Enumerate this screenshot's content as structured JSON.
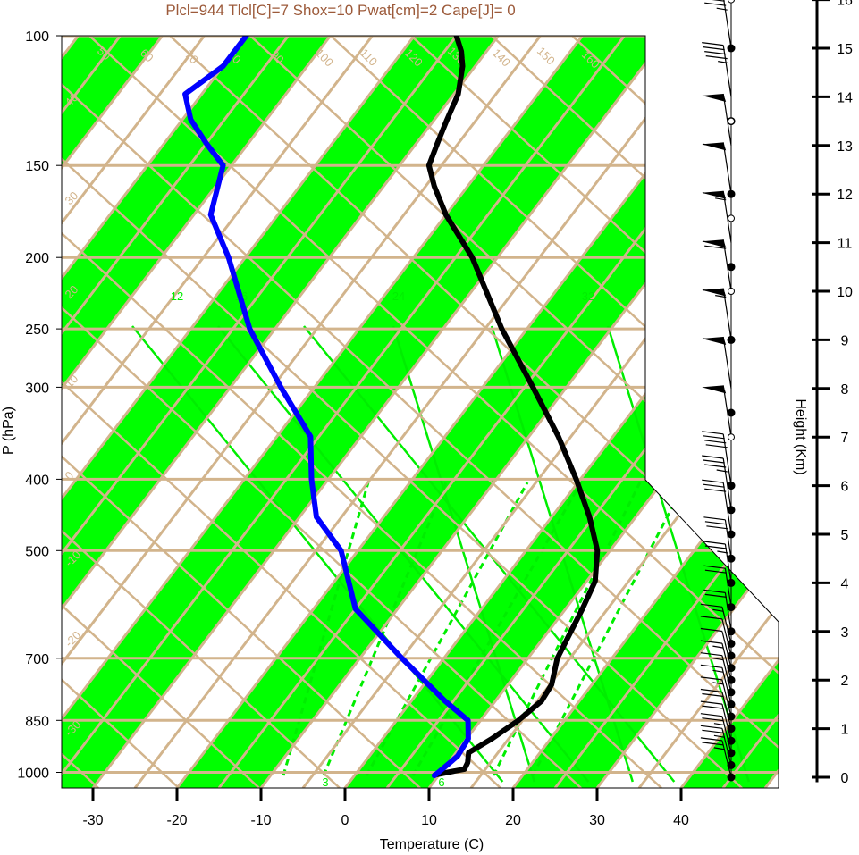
{
  "title": "Plcl=944 Tlcl[C]=7 Shox=10 Pwat[cm]=2 Cape[J]= 0",
  "colors": {
    "band_green": "#00ff00",
    "tan": "#d2b48c",
    "temperature": "#000000",
    "dewpoint": "#0000ff",
    "moist_adiabat": "#00ee00",
    "mixing_ratio": "#00ee00",
    "title": "#9c5a3a"
  },
  "chart_data": {
    "type": "skew-t",
    "title": "Plcl=944 Tlcl[C]=7 Shox=10 Pwat[cm]=2 Cape[J]= 0",
    "xlabel": "Temperature (C)",
    "ylabel": "P (hPa)",
    "y2label": "Height (Km)",
    "pressure_ticks": [
      100,
      150,
      200,
      250,
      300,
      400,
      500,
      700,
      850,
      1000
    ],
    "temperature_ticks": [
      -30,
      -20,
      -10,
      0,
      10,
      20,
      30,
      40
    ],
    "height_ticks": [
      0,
      1,
      2,
      3,
      4,
      5,
      6,
      7,
      8,
      9,
      10,
      11,
      12,
      13,
      14,
      15,
      16
    ],
    "xlim": [
      -33,
      52
    ],
    "ylog_range": [
      100,
      1050
    ],
    "dry_adiabat_labels": [
      50,
      60,
      70,
      80,
      90,
      100,
      110,
      120,
      130,
      140,
      150,
      160
    ],
    "isotherm_labels": [
      40,
      30,
      20,
      10,
      0,
      -10,
      -20,
      -30,
      30,
      20,
      10,
      0,
      10,
      20,
      30
    ],
    "mixing_ratio_labels_top": [
      12,
      16,
      24,
      32
    ],
    "mixing_ratio_labels_bottom": [
      3,
      6
    ],
    "series": [
      {
        "name": "Temperature",
        "points": [
          [
            1008,
            9.5
          ],
          [
            1000,
            10.8
          ],
          [
            990,
            12.5
          ],
          [
            970,
            12.3
          ],
          [
            940,
            11.5
          ],
          [
            900,
            13
          ],
          [
            850,
            14.5
          ],
          [
            800,
            15.5
          ],
          [
            760,
            15.2
          ],
          [
            700,
            13.5
          ],
          [
            600,
            12
          ],
          [
            550,
            11
          ],
          [
            500,
            8.5
          ],
          [
            450,
            4.5
          ],
          [
            400,
            -0.5
          ],
          [
            350,
            -6.5
          ],
          [
            300,
            -14
          ],
          [
            250,
            -23
          ],
          [
            200,
            -33
          ],
          [
            175,
            -40
          ],
          [
            160,
            -44
          ],
          [
            150,
            -46.5
          ],
          [
            140,
            -47.5
          ],
          [
            130,
            -48.5
          ],
          [
            120,
            -49.5
          ],
          [
            110,
            -51.5
          ],
          [
            105,
            -53
          ],
          [
            100,
            -55
          ]
        ]
      },
      {
        "name": "Dewpoint",
        "points": [
          [
            1010,
            9.5
          ],
          [
            1000,
            9.7
          ],
          [
            950,
            10.5
          ],
          [
            900,
            10.2
          ],
          [
            850,
            8.5
          ],
          [
            800,
            4
          ],
          [
            700,
            -5
          ],
          [
            600,
            -15
          ],
          [
            500,
            -22
          ],
          [
            450,
            -28
          ],
          [
            400,
            -32
          ],
          [
            350,
            -36
          ],
          [
            300,
            -44
          ],
          [
            250,
            -53
          ],
          [
            200,
            -62
          ],
          [
            175,
            -68
          ],
          [
            150,
            -71
          ],
          [
            140,
            -75
          ],
          [
            130,
            -79
          ],
          [
            120,
            -82
          ],
          [
            110,
            -80
          ],
          [
            100,
            -80
          ]
        ]
      }
    ],
    "wind_barbs": [
      {
        "h": 0,
        "spd": 25
      },
      {
        "h": 0.25,
        "spd": 25
      },
      {
        "h": 0.5,
        "spd": 25
      },
      {
        "h": 0.75,
        "spd": 20
      },
      {
        "h": 1.0,
        "spd": 20
      },
      {
        "h": 1.25,
        "spd": 15
      },
      {
        "h": 1.5,
        "spd": 15
      },
      {
        "h": 1.75,
        "spd": 15
      },
      {
        "h": 2.0,
        "spd": 15
      },
      {
        "h": 2.25,
        "spd": 10
      },
      {
        "h": 2.5,
        "spd": 10
      },
      {
        "h": 2.75,
        "spd": 15
      },
      {
        "h": 3.0,
        "spd": 20
      },
      {
        "h": 3.5,
        "spd": 20
      },
      {
        "h": 4.0,
        "spd": 25
      },
      {
        "h": 4.5,
        "spd": 30
      },
      {
        "h": 5.0,
        "spd": 30
      },
      {
        "h": 5.5,
        "spd": 35
      },
      {
        "h": 6.0,
        "spd": 40
      },
      {
        "h": 7.0,
        "spd": 50
      },
      {
        "h": 8.0,
        "spd": 60
      },
      {
        "h": 9.0,
        "spd": 65
      },
      {
        "h": 10.0,
        "spd": 70
      },
      {
        "h": 11.0,
        "spd": 65
      },
      {
        "h": 12.0,
        "spd": 60
      },
      {
        "h": 13.0,
        "spd": 50
      },
      {
        "h": 14.0,
        "spd": 45
      },
      {
        "h": 15.0,
        "spd": 35
      },
      {
        "h": 16.0,
        "spd": 25
      }
    ],
    "filled_dot_heights": [
      0,
      0.25,
      0.5,
      0.75,
      1.0,
      1.25,
      1.5,
      1.75,
      2.0,
      2.25,
      2.5,
      2.75,
      3.0,
      3.5,
      4.0,
      4.5,
      5.0,
      5.5,
      6.0,
      7.5,
      9.0,
      10.5,
      12.0,
      13.5,
      15.0
    ],
    "open_dot_heights": [
      7.0,
      10.0,
      11.5,
      13.5,
      16.0
    ]
  }
}
